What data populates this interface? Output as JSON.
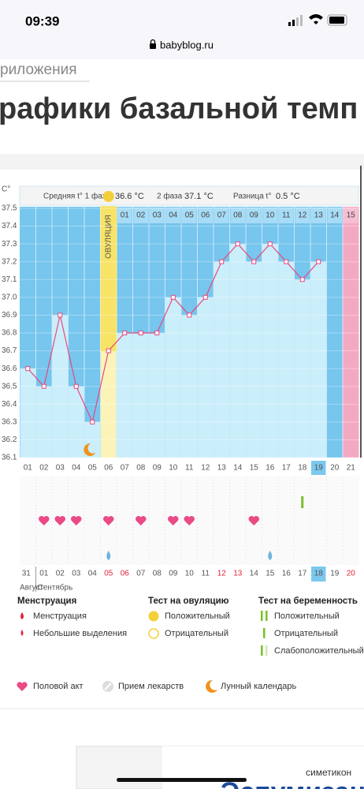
{
  "status_bar": {
    "time": "09:39",
    "url": "babyblog.ru"
  },
  "header": {
    "breadcrumb": "риложения",
    "title": "рафики базальной темп"
  },
  "chart_data": {
    "type": "line",
    "y_axis_label": "C°",
    "summary": {
      "phase1_label": "Средняя t° 1 фаза",
      "phase1_value": "36.6 °C",
      "phase2_label": "2 фаза",
      "phase2_value": "37.1 °C",
      "difference_label": "Разница t°",
      "difference_value": "0.5 °C"
    },
    "ovulation_label": "ОВУЛЯЦИЯ",
    "phase2_days": [
      "01",
      "02",
      "03",
      "04",
      "05",
      "06",
      "07",
      "08",
      "09",
      "10",
      "11",
      "12",
      "13",
      "14",
      "15"
    ],
    "categories": [
      "01",
      "02",
      "03",
      "04",
      "05",
      "06",
      "07",
      "08",
      "09",
      "10",
      "11",
      "12",
      "13",
      "14",
      "15",
      "16",
      "17",
      "18",
      "19",
      "20",
      "21"
    ],
    "values": [
      36.6,
      36.5,
      36.9,
      36.5,
      36.3,
      36.7,
      36.8,
      36.8,
      36.8,
      37.0,
      36.9,
      37.0,
      37.2,
      37.3,
      37.2,
      37.3,
      37.2,
      37.1,
      37.2,
      null,
      null
    ],
    "color": "#e8487f",
    "ylim": [
      36.1,
      37.5
    ],
    "yticks": [
      36.1,
      36.2,
      36.3,
      36.4,
      36.5,
      36.6,
      36.7,
      36.8,
      36.9,
      {
        "value": 37,
        "label": "37.0"
      },
      37.1,
      37.2,
      37.3,
      37.4,
      37.5
    ],
    "grid": true,
    "calendar_dates": [
      "31",
      "01",
      "02",
      "03",
      "04",
      "05",
      "06",
      "07",
      "08",
      "09",
      "10",
      "11",
      "12",
      "13",
      "14",
      "15",
      "16",
      "17",
      "18",
      "19",
      "20"
    ],
    "months": [
      "Август",
      "Сентябрь"
    ]
  },
  "legend": {
    "menstruation": {
      "title": "Менструация",
      "items": [
        "Менструация",
        "Небольшие выделения"
      ]
    },
    "ovulation_test": {
      "title": "Тест на овуляцию",
      "items": [
        "Положительный",
        "Отрицательный"
      ]
    },
    "pregnancy_test": {
      "title": "Тест на беременность",
      "items": [
        "Положительный",
        "Отрицательный",
        "Слабоположительный"
      ]
    },
    "other": [
      "Половой акт",
      "Прием лекарств",
      "Лунный календарь"
    ]
  },
  "ad": {
    "subtitle": "симетикон",
    "brand": "Эспумизан"
  }
}
